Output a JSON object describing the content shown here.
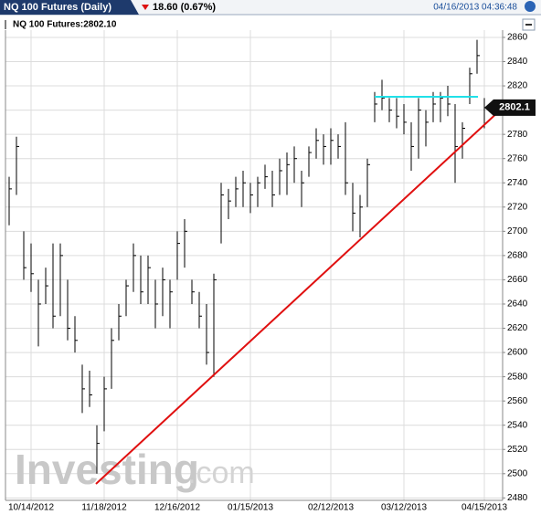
{
  "header": {
    "title": "NQ 100 Futures (Daily)",
    "change": "18.60 (0.67%)",
    "timestamp": "04/16/2013 04:36:48"
  },
  "chart_data": {
    "type": "ohlc",
    "legend": "NQ 100 Futures:2802.10",
    "watermark": "Investing",
    "watermark_suffix": ".com",
    "last_price": 2802.1,
    "color": "#000000",
    "grid": true,
    "categories": [
      null,
      null,
      null,
      "10/14/2012",
      null,
      null,
      null,
      null,
      null,
      null,
      null,
      null,
      null,
      "11/18/2012",
      null,
      null,
      null,
      null,
      null,
      null,
      null,
      null,
      null,
      "12/16/2012",
      null,
      null,
      null,
      null,
      null,
      null,
      null,
      null,
      null,
      "01/15/2013",
      null,
      null,
      null,
      null,
      null,
      null,
      null,
      null,
      null,
      null,
      "02/12/2013",
      null,
      null,
      null,
      null,
      null,
      null,
      null,
      null,
      null,
      "03/12/2013",
      null,
      null,
      null,
      null,
      null,
      null,
      null,
      null,
      null,
      null,
      "04/15/2013"
    ],
    "high": [
      2745,
      2778,
      2700,
      2690,
      2660,
      2670,
      2690,
      2690,
      2660,
      2630,
      2590,
      2585,
      2540,
      2580,
      2620,
      2640,
      2660,
      2690,
      2680,
      2680,
      2660,
      2670,
      2660,
      2700,
      2710,
      2660,
      2650,
      2640,
      2665,
      2740,
      2735,
      2745,
      2750,
      2740,
      2745,
      2755,
      2750,
      2760,
      2765,
      2770,
      2750,
      2770,
      2785,
      2780,
      2785,
      2780,
      2790,
      2740,
      2730,
      2760,
      2815,
      2825,
      2810,
      2810,
      2805,
      2790,
      2810,
      2800,
      2815,
      2815,
      2820,
      2805,
      2790,
      2835,
      2858,
      2810
    ],
    "low": [
      2705,
      2730,
      2660,
      2650,
      2605,
      2640,
      2620,
      2630,
      2610,
      2600,
      2550,
      2555,
      2500,
      2535,
      2570,
      2610,
      2630,
      2650,
      2640,
      2640,
      2620,
      2630,
      2620,
      2660,
      2670,
      2640,
      2620,
      2590,
      2580,
      2690,
      2710,
      2720,
      2720,
      2715,
      2720,
      2735,
      2720,
      2730,
      2730,
      2740,
      2720,
      2745,
      2760,
      2755,
      2755,
      2760,
      2730,
      2700,
      2695,
      2720,
      2790,
      2800,
      2790,
      2785,
      2780,
      2750,
      2760,
      2770,
      2790,
      2790,
      2795,
      2740,
      2760,
      2805,
      2830,
      2785
    ],
    "close": [
      2735,
      2770,
      2670,
      2665,
      2640,
      2655,
      2630,
      2680,
      2620,
      2610,
      2570,
      2565,
      2525,
      2570,
      2610,
      2630,
      2655,
      2680,
      2650,
      2670,
      2640,
      2660,
      2650,
      2690,
      2700,
      2650,
      2630,
      2600,
      2660,
      2730,
      2725,
      2735,
      2740,
      2730,
      2740,
      2745,
      2730,
      2750,
      2755,
      2760,
      2740,
      2765,
      2775,
      2770,
      2775,
      2770,
      2740,
      2715,
      2720,
      2755,
      2805,
      2810,
      2800,
      2795,
      2790,
      2770,
      2800,
      2790,
      2805,
      2810,
      2805,
      2770,
      2785,
      2830,
      2845,
      2802.1
    ],
    "ylim": [
      2478,
      2866
    ],
    "yticks": [
      2480,
      2500,
      2520,
      2540,
      2560,
      2580,
      2600,
      2620,
      2640,
      2660,
      2680,
      2700,
      2720,
      2740,
      2760,
      2780,
      2800,
      2820,
      2840,
      2860
    ]
  }
}
